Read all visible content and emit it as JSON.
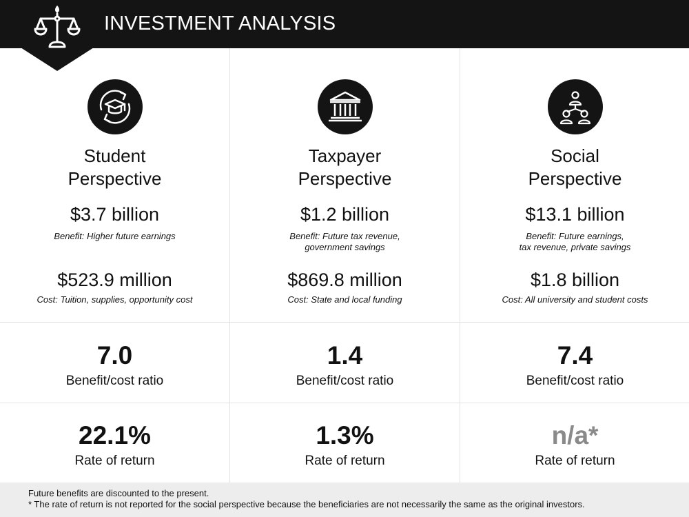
{
  "header": {
    "title": "INVESTMENT ANALYSIS",
    "icon": "balance-scale-icon",
    "background": "#141414"
  },
  "columns": [
    {
      "icon": "graduation-cap-cycle-icon",
      "perspective_line1": "Student",
      "perspective_line2": "Perspective",
      "benefit_amount": "$3.7 billion",
      "benefit_note_line1": "Benefit: Higher future earnings",
      "benefit_note_line2": "",
      "cost_amount": "$523.9 million",
      "cost_note": "Cost: Tuition, supplies, opportunity cost",
      "ratio_value": "7.0",
      "ratio_label": "Benefit/cost ratio",
      "return_value": "22.1%",
      "return_label": "Rate of return"
    },
    {
      "icon": "government-building-icon",
      "perspective_line1": "Taxpayer",
      "perspective_line2": "Perspective",
      "benefit_amount": "$1.2 billion",
      "benefit_note_line1": "Benefit: Future tax revenue,",
      "benefit_note_line2": "government savings",
      "cost_amount": "$869.8 million",
      "cost_note": "Cost: State and local funding",
      "ratio_value": "1.4",
      "ratio_label": "Benefit/cost ratio",
      "return_value": "1.3%",
      "return_label": "Rate of return"
    },
    {
      "icon": "people-network-icon",
      "perspective_line1": "Social",
      "perspective_line2": "Perspective",
      "benefit_amount": "$13.1 billion",
      "benefit_note_line1": "Benefit: Future earnings,",
      "benefit_note_line2": "tax revenue, private savings",
      "cost_amount": "$1.8 billion",
      "cost_note": "Cost: All university and student costs",
      "ratio_value": "7.4",
      "ratio_label": "Benefit/cost ratio",
      "return_value": "n/a*",
      "return_label": "Rate of return"
    }
  ],
  "footer": {
    "line1": "Future benefits are discounted to the present.",
    "line2": "* The rate of return is not reported for the social perspective because the beneficiaries are not necessarily the same as the original investors."
  },
  "colors": {
    "dark": "#141414",
    "muted_value": "#8a8a8a",
    "footer_bg": "#ededed",
    "divider": "#e2e2e2"
  }
}
